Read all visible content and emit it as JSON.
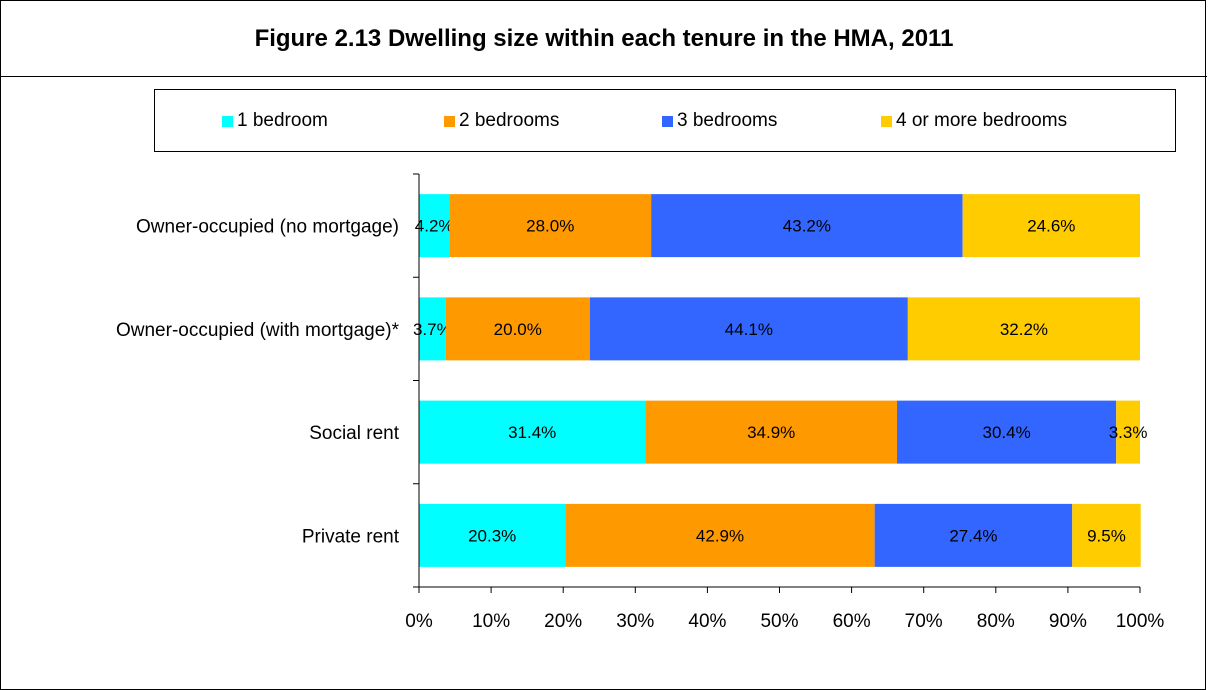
{
  "chart_data": {
    "type": "bar",
    "orientation": "horizontal",
    "stacked": "percent",
    "title": "Figure 2.13 Dwelling size within each tenure in the HMA, 2011",
    "categories": [
      "Owner-occupied (no mortgage)",
      "Owner-occupied (with mortgage)*",
      "Social rent",
      "Private rent"
    ],
    "series": [
      {
        "name": "1 bedroom",
        "color": "#00FFFF",
        "values": [
          4.2,
          3.7,
          31.4,
          20.3
        ],
        "labels": [
          "4.2%",
          "3.7%",
          "31.4%",
          "20.3%"
        ]
      },
      {
        "name": "2 bedrooms",
        "color": "#FF9900",
        "values": [
          28.0,
          20.0,
          34.9,
          42.9
        ],
        "labels": [
          "28.0%",
          "20.0%",
          "34.9%",
          "42.9%"
        ]
      },
      {
        "name": "3 bedrooms",
        "color": "#3366FF",
        "values": [
          43.2,
          44.1,
          30.4,
          27.4
        ],
        "labels": [
          "43.2%",
          "44.1%",
          "30.4%",
          "27.4%"
        ]
      },
      {
        "name": "4 or more bedrooms",
        "color": "#FFCC00",
        "values": [
          24.6,
          32.2,
          3.3,
          9.5
        ],
        "labels": [
          "24.6%",
          "32.2%",
          "3.3%",
          "9.5%"
        ]
      }
    ],
    "xlim": [
      0,
      100
    ],
    "x_ticks": [
      "0%",
      "10%",
      "20%",
      "30%",
      "40%",
      "50%",
      "60%",
      "70%",
      "80%",
      "90%",
      "100%"
    ],
    "grid": false,
    "legend_position": "top"
  }
}
